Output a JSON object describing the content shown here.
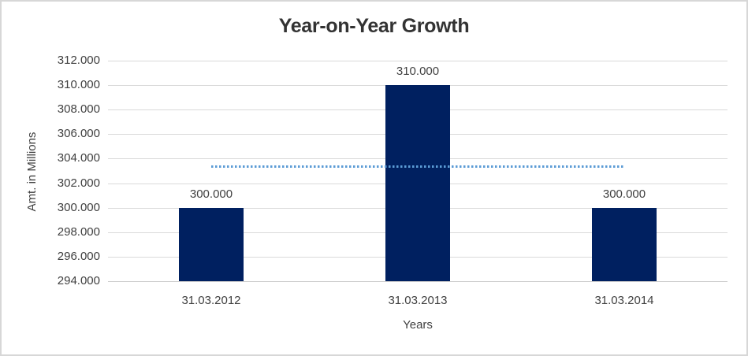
{
  "frame": {
    "background": "#ffffff",
    "border_color": "#d7d7d7"
  },
  "chart_data": {
    "type": "bar",
    "title": "Year-on-Year Growth",
    "xlabel": "Years",
    "ylabel": "Amt. in Millions",
    "categories": [
      "31.03.2012",
      "31.03.2013",
      "31.03.2014"
    ],
    "series": [
      {
        "name": "amount",
        "type": "bar",
        "values": [
          300000,
          310000,
          300000
        ],
        "data_labels": [
          "300.000",
          "310.000",
          "300.000"
        ],
        "color": "#002060"
      },
      {
        "name": "average-line",
        "type": "line",
        "line_style": "dotted",
        "values": [
          303333,
          303333,
          303333
        ],
        "color": "#5b9bd5"
      }
    ],
    "ylim": [
      294000,
      312000
    ],
    "ytick_step": 2000,
    "ytick_labels": [
      "294.000",
      "296.000",
      "298.000",
      "300.000",
      "302.000",
      "304.000",
      "306.000",
      "308.000",
      "310.000",
      "312.000"
    ],
    "grid": true,
    "legend": "none",
    "colors": {
      "gridline": "#d9d9d9",
      "axis_line": "#cdcdcd",
      "tick_text": "#404040",
      "title_text": "#333333"
    }
  }
}
